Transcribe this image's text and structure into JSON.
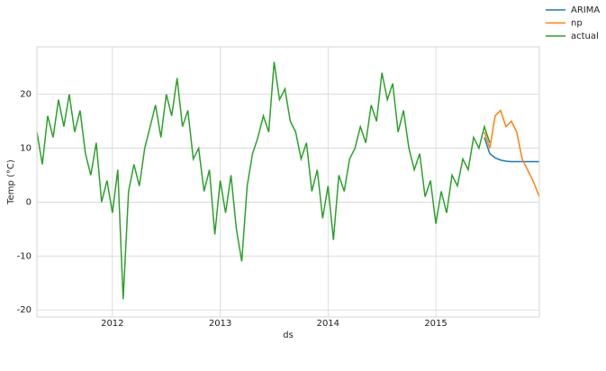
{
  "chart_data": {
    "type": "line",
    "xlabel": "ds",
    "ylabel": "Temp (°C)",
    "xlim": [
      2011.3,
      2015.96
    ],
    "xticks": [
      2012,
      2013,
      2014,
      2015
    ],
    "ylim": [
      -21.3,
      28.8
    ],
    "yticks": [
      -20,
      -10,
      0,
      10,
      20
    ],
    "grid": true,
    "legend": "upper right outside",
    "series": [
      {
        "name": "ARIMA",
        "color": "#1f77b4",
        "x": [
          2015.45,
          2015.5,
          2015.55,
          2015.6,
          2015.65,
          2015.7,
          2015.75,
          2015.8,
          2015.85,
          2015.9,
          2015.96
        ],
        "values": [
          12,
          9,
          8.2,
          7.8,
          7.6,
          7.5,
          7.5,
          7.5,
          7.5,
          7.5,
          7.5
        ]
      },
      {
        "name": "np",
        "color": "#ff7f0e",
        "x": [
          2015.45,
          2015.5,
          2015.55,
          2015.6,
          2015.65,
          2015.7,
          2015.75,
          2015.8,
          2015.85,
          2015.9,
          2015.96
        ],
        "values": [
          13,
          10,
          16,
          17,
          14,
          15,
          13,
          8,
          6,
          4,
          1
        ]
      },
      {
        "name": "actual",
        "color": "#2ca02c",
        "x": [
          2011.3,
          2011.35,
          2011.4,
          2011.45,
          2011.5,
          2011.55,
          2011.6,
          2011.65,
          2011.7,
          2011.75,
          2011.8,
          2011.85,
          2011.9,
          2011.95,
          2012.0,
          2012.05,
          2012.1,
          2012.15,
          2012.2,
          2012.25,
          2012.3,
          2012.35,
          2012.4,
          2012.45,
          2012.5,
          2012.55,
          2012.6,
          2012.65,
          2012.7,
          2012.75,
          2012.8,
          2012.85,
          2012.9,
          2012.95,
          2013.0,
          2013.05,
          2013.1,
          2013.15,
          2013.2,
          2013.25,
          2013.3,
          2013.35,
          2013.4,
          2013.45,
          2013.5,
          2013.55,
          2013.6,
          2013.65,
          2013.7,
          2013.75,
          2013.8,
          2013.85,
          2013.9,
          2013.95,
          2014.0,
          2014.05,
          2014.1,
          2014.15,
          2014.2,
          2014.25,
          2014.3,
          2014.35,
          2014.4,
          2014.45,
          2014.5,
          2014.55,
          2014.6,
          2014.65,
          2014.7,
          2014.75,
          2014.8,
          2014.85,
          2014.9,
          2014.95,
          2015.0,
          2015.05,
          2015.1,
          2015.15,
          2015.2,
          2015.25,
          2015.3,
          2015.35,
          2015.4,
          2015.45,
          2015.5
        ],
        "values": [
          13,
          7,
          16,
          12,
          19,
          14,
          20,
          13,
          17,
          9,
          5,
          11,
          0,
          4,
          -2,
          6,
          -18,
          2,
          7,
          3,
          10,
          14,
          18,
          12,
          20,
          16,
          23,
          14,
          17,
          8,
          10,
          2,
          6,
          -6,
          4,
          -2,
          5,
          -5,
          -11,
          3,
          9,
          12,
          16,
          13,
          26,
          19,
          21,
          15,
          13,
          8,
          11,
          2,
          6,
          -3,
          3,
          -7,
          5,
          2,
          8,
          10,
          14,
          11,
          18,
          15,
          24,
          19,
          22,
          13,
          17,
          10,
          6,
          9,
          1,
          4,
          -4,
          2,
          -2,
          5,
          3,
          8,
          6,
          12,
          10,
          14,
          11
        ]
      }
    ]
  }
}
